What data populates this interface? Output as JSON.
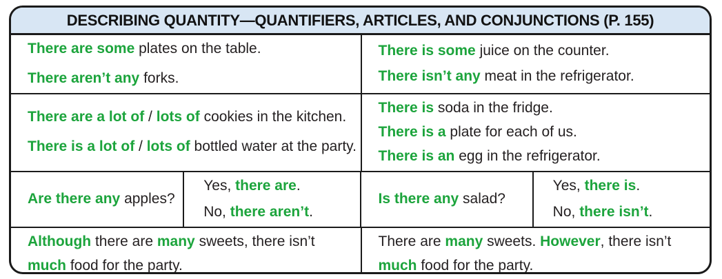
{
  "header": {
    "title": "DESCRIBING QUANTITY—QUANTIFIERS, ARTICLES, AND CONJUNCTIONS (P. 155)"
  },
  "colors": {
    "accent_green": "#1CA43C",
    "header_background": "#D8E6F4",
    "border": "#1A1A1A",
    "text": "#231F20"
  },
  "rows": {
    "r1": {
      "left": {
        "line1": [
          {
            "text": "There are some",
            "green": true
          },
          {
            "text": " plates on the table.",
            "green": false
          }
        ],
        "line2": [
          {
            "text": "There aren’t any",
            "green": true
          },
          {
            "text": " forks.",
            "green": false
          }
        ]
      },
      "right": {
        "line1": [
          {
            "text": "There is some",
            "green": true
          },
          {
            "text": " juice on the counter.",
            "green": false
          }
        ],
        "line2": [
          {
            "text": "There isn’t any",
            "green": true
          },
          {
            "text": " meat in the refrigerator.",
            "green": false
          }
        ]
      }
    },
    "r2": {
      "left": {
        "line1": [
          {
            "text": "There are a lot of",
            "green": true
          },
          {
            "text": " / ",
            "green": false
          },
          {
            "text": "lots of",
            "green": true
          },
          {
            "text": " cookies in the kitchen.",
            "green": false
          }
        ],
        "line2": [
          {
            "text": "There is a lot of",
            "green": true
          },
          {
            "text": " / ",
            "green": false
          },
          {
            "text": "lots of",
            "green": true
          },
          {
            "text": " bottled water at the party.",
            "green": false
          }
        ]
      },
      "right": {
        "line1": [
          {
            "text": "There is",
            "green": true
          },
          {
            "text": " soda in the fridge.",
            "green": false
          }
        ],
        "line2": [
          {
            "text": "There is a",
            "green": true
          },
          {
            "text": " plate for each of us.",
            "green": false
          }
        ],
        "line3": [
          {
            "text": "There is an",
            "green": true
          },
          {
            "text": " egg in the refrigerator.",
            "green": false
          }
        ]
      }
    },
    "r3": {
      "question_left": {
        "line1": [
          {
            "text": "Are there any",
            "green": true
          },
          {
            "text": " apples?",
            "green": false
          }
        ]
      },
      "answer_left": {
        "line1": [
          {
            "text": "Yes, ",
            "green": false
          },
          {
            "text": "there are",
            "green": true
          },
          {
            "text": ".",
            "green": false
          }
        ],
        "line2": [
          {
            "text": "No, ",
            "green": false
          },
          {
            "text": "there aren’t",
            "green": true
          },
          {
            "text": ".",
            "green": false
          }
        ]
      },
      "question_right": {
        "line1": [
          {
            "text": "Is there any",
            "green": true
          },
          {
            "text": " salad?",
            "green": false
          }
        ]
      },
      "answer_right": {
        "line1": [
          {
            "text": "Yes, ",
            "green": false
          },
          {
            "text": "there is",
            "green": true
          },
          {
            "text": ".",
            "green": false
          }
        ],
        "line2": [
          {
            "text": "No, ",
            "green": false
          },
          {
            "text": "there isn’t",
            "green": true
          },
          {
            "text": ".",
            "green": false
          }
        ]
      }
    },
    "r4": {
      "left": {
        "line1": [
          {
            "text": "Although",
            "green": true
          },
          {
            "text": " there are ",
            "green": false
          },
          {
            "text": "many",
            "green": true
          },
          {
            "text": " sweets, there isn’t",
            "green": false
          }
        ],
        "line2": [
          {
            "text": "much",
            "green": true
          },
          {
            "text": " food for the party.",
            "green": false
          }
        ]
      },
      "right": {
        "line1": [
          {
            "text": "There are ",
            "green": false
          },
          {
            "text": "many",
            "green": true
          },
          {
            "text": " sweets. ",
            "green": false
          },
          {
            "text": "However",
            "green": true
          },
          {
            "text": ", there isn’t",
            "green": false
          }
        ],
        "line2": [
          {
            "text": "much",
            "green": true
          },
          {
            "text": " food for the party.",
            "green": false
          }
        ]
      }
    }
  }
}
